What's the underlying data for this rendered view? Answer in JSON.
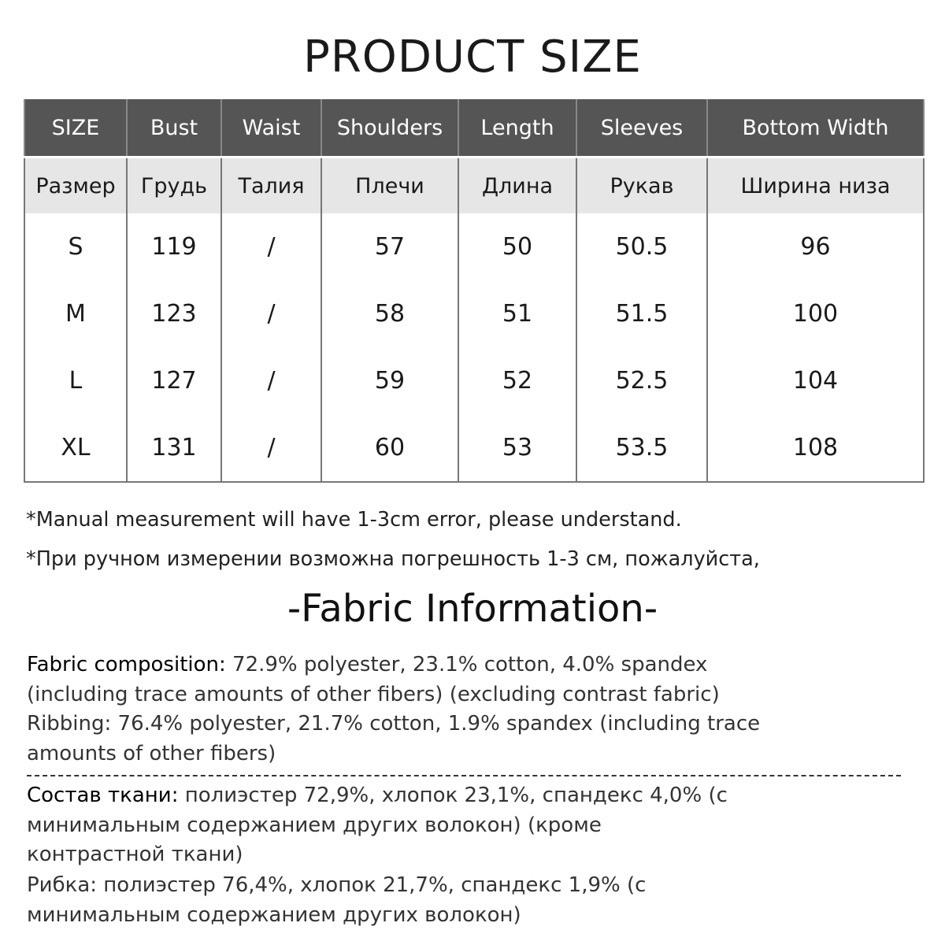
{
  "title": "PRODUCT SIZE",
  "table": {
    "headers_en": [
      "SIZE",
      "Bust",
      "Waist",
      "Shoulders",
      "Length",
      "Sleeves",
      "Bottom Width"
    ],
    "headers_ru": [
      "Размер",
      "Грудь",
      "Талия",
      "Плечи",
      "Длина",
      "Рукав",
      "Ширина низа"
    ],
    "rows": [
      [
        "S",
        "119",
        "/",
        "57",
        "50",
        "50.5",
        "96"
      ],
      [
        "M",
        "123",
        "/",
        "58",
        "51",
        "51.5",
        "100"
      ],
      [
        "L",
        "127",
        "/",
        "59",
        "52",
        "52.5",
        "104"
      ],
      [
        "XL",
        "131",
        "/",
        "60",
        "53",
        "53.5",
        "108"
      ]
    ]
  },
  "notes": [
    "*Manual measurement will have 1-3cm error, please understand.",
    "*При ручном измерении возможна погрешность 1-3 см, пожалуйста,"
  ],
  "fabric": {
    "title": "-Fabric Information-",
    "en_label": "Fabric composition:",
    "en_lines": [
      " 72.9% polyester, 23.1% cotton, 4.0% spandex",
      "(including trace amounts of other fibers) (excluding contrast fabric)",
      "Ribbing: 76.4% polyester, 21.7% cotton, 1.9% spandex (including trace",
      "amounts of other fibers)"
    ],
    "ru_label": "Состав ткани:",
    "ru_lines": [
      " полиэстер 72,9%, хлопок 23,1%, спандекс 4,0% (с",
      "минимальным содержанием других волокон) (кроме",
      "контрастной ткани)",
      "Рибка: полиэстер 76,4%, хлопок 21,7%, спандекс 1,9% (с",
      "минимальным содержанием других волокон)"
    ]
  }
}
